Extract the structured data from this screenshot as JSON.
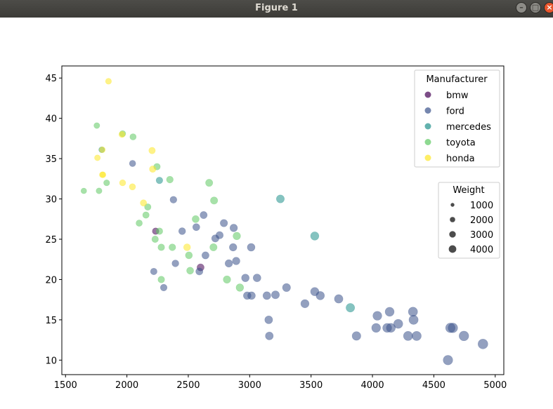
{
  "window": {
    "title": "Figure 1",
    "minimize_glyph": "–",
    "maximize_glyph": "□",
    "close_glyph": "×"
  },
  "chart_data": {
    "type": "scatter",
    "title": "",
    "xlabel": "",
    "ylabel": "",
    "xlim": [
      1470,
      5070
    ],
    "ylim": [
      8.2,
      46.5
    ],
    "xticks": [
      1500,
      2000,
      2500,
      3000,
      3500,
      4000,
      4500,
      5000
    ],
    "yticks": [
      10,
      15,
      20,
      25,
      30,
      35,
      40,
      45
    ],
    "grid": false,
    "size_encoding": "weight",
    "legends": [
      {
        "title": "Manufacturer",
        "placement": "top-right",
        "entries": [
          {
            "label": "bmw",
            "color": "#440154"
          },
          {
            "label": "ford",
            "color": "#3b528b"
          },
          {
            "label": "mercedes",
            "color": "#21918c"
          },
          {
            "label": "toyota",
            "color": "#5ec962"
          },
          {
            "label": "honda",
            "color": "#fde725"
          }
        ]
      },
      {
        "title": "Weight",
        "placement": "right",
        "entries": [
          {
            "label": "1000",
            "value": 1000
          },
          {
            "label": "2000",
            "value": 2000
          },
          {
            "label": "3000",
            "value": 3000
          },
          {
            "label": "4000",
            "value": 4000
          }
        ]
      }
    ],
    "series": [
      {
        "name": "bmw",
        "color": "#440154",
        "points": [
          {
            "x": 2234,
            "y": 26
          },
          {
            "x": 2600,
            "y": 21.5
          }
        ]
      },
      {
        "name": "ford",
        "color": "#3b528b",
        "points": [
          {
            "x": 2046,
            "y": 34.4
          },
          {
            "x": 2219,
            "y": 21
          },
          {
            "x": 2300,
            "y": 19
          },
          {
            "x": 2379,
            "y": 29.9
          },
          {
            "x": 2395,
            "y": 22
          },
          {
            "x": 2450,
            "y": 26
          },
          {
            "x": 2565,
            "y": 26.5
          },
          {
            "x": 2590,
            "y": 21
          },
          {
            "x": 2625,
            "y": 28
          },
          {
            "x": 2640,
            "y": 23
          },
          {
            "x": 2720,
            "y": 25.1
          },
          {
            "x": 2755,
            "y": 25.5
          },
          {
            "x": 2790,
            "y": 27
          },
          {
            "x": 2830,
            "y": 22
          },
          {
            "x": 2865,
            "y": 24
          },
          {
            "x": 2870,
            "y": 26.4
          },
          {
            "x": 2890,
            "y": 22.3
          },
          {
            "x": 2965,
            "y": 20.2
          },
          {
            "x": 2980,
            "y": 18
          },
          {
            "x": 3015,
            "y": 18
          },
          {
            "x": 3012,
            "y": 24
          },
          {
            "x": 3060,
            "y": 20.2
          },
          {
            "x": 3140,
            "y": 18
          },
          {
            "x": 3155,
            "y": 15
          },
          {
            "x": 3160,
            "y": 13
          },
          {
            "x": 3210,
            "y": 18.1
          },
          {
            "x": 3300,
            "y": 19
          },
          {
            "x": 3450,
            "y": 17
          },
          {
            "x": 3530,
            "y": 18.5
          },
          {
            "x": 3575,
            "y": 18
          },
          {
            "x": 3725,
            "y": 17.6
          },
          {
            "x": 3870,
            "y": 13
          },
          {
            "x": 4040,
            "y": 15.5
          },
          {
            "x": 4030,
            "y": 14
          },
          {
            "x": 4120,
            "y": 14
          },
          {
            "x": 4140,
            "y": 16
          },
          {
            "x": 4150,
            "y": 14
          },
          {
            "x": 4210,
            "y": 14.5
          },
          {
            "x": 4290,
            "y": 13
          },
          {
            "x": 4330,
            "y": 16
          },
          {
            "x": 4335,
            "y": 15
          },
          {
            "x": 4360,
            "y": 13
          },
          {
            "x": 4635,
            "y": 14
          },
          {
            "x": 4615,
            "y": 10
          },
          {
            "x": 4655,
            "y": 14
          },
          {
            "x": 4745,
            "y": 13
          },
          {
            "x": 4900,
            "y": 12
          }
        ]
      },
      {
        "name": "mercedes",
        "color": "#21918c",
        "points": [
          {
            "x": 1795,
            "y": 36.1
          },
          {
            "x": 2265,
            "y": 32.3
          },
          {
            "x": 3250,
            "y": 30
          },
          {
            "x": 3530,
            "y": 25.4
          },
          {
            "x": 3820,
            "y": 16.5
          }
        ]
      },
      {
        "name": "toyota",
        "color": "#5ec962",
        "points": [
          {
            "x": 1649,
            "y": 31
          },
          {
            "x": 1755,
            "y": 39.1
          },
          {
            "x": 1773,
            "y": 31
          },
          {
            "x": 1835,
            "y": 32
          },
          {
            "x": 1965,
            "y": 38.1
          },
          {
            "x": 2050,
            "y": 37.7
          },
          {
            "x": 2100,
            "y": 27
          },
          {
            "x": 2155,
            "y": 28
          },
          {
            "x": 2170,
            "y": 29
          },
          {
            "x": 2230,
            "y": 25
          },
          {
            "x": 2245,
            "y": 34
          },
          {
            "x": 2265,
            "y": 26
          },
          {
            "x": 2280,
            "y": 24
          },
          {
            "x": 2280,
            "y": 20
          },
          {
            "x": 2350,
            "y": 32.4
          },
          {
            "x": 2370,
            "y": 24
          },
          {
            "x": 2505,
            "y": 23
          },
          {
            "x": 2515,
            "y": 21.1
          },
          {
            "x": 2560,
            "y": 27.5
          },
          {
            "x": 2670,
            "y": 32
          },
          {
            "x": 2705,
            "y": 24
          },
          {
            "x": 2710,
            "y": 29.8
          },
          {
            "x": 2895,
            "y": 25.4
          },
          {
            "x": 2920,
            "y": 19
          },
          {
            "x": 2815,
            "y": 20
          }
        ]
      },
      {
        "name": "honda",
        "color": "#fde725",
        "points": [
          {
            "x": 1850,
            "y": 44.6
          },
          {
            "x": 1760,
            "y": 35.1
          },
          {
            "x": 1800,
            "y": 33
          },
          {
            "x": 1805,
            "y": 33
          },
          {
            "x": 1800,
            "y": 36.1
          },
          {
            "x": 1965,
            "y": 32
          },
          {
            "x": 1960,
            "y": 38
          },
          {
            "x": 2045,
            "y": 31.5
          },
          {
            "x": 2135,
            "y": 29.5
          },
          {
            "x": 2205,
            "y": 36
          },
          {
            "x": 2210,
            "y": 33.7
          },
          {
            "x": 2490,
            "y": 24
          }
        ]
      }
    ]
  }
}
